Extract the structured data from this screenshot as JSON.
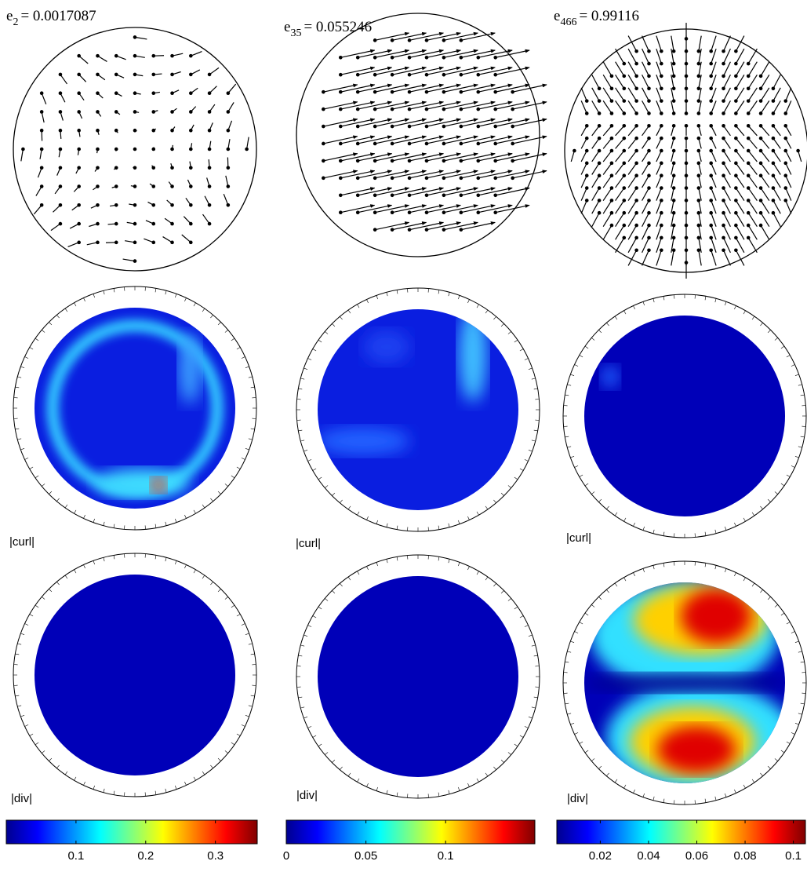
{
  "panels": [
    {
      "title": {
        "base": "e",
        "subscript": "2",
        "value": "= 0.0017087"
      },
      "curl_label": "|curl|",
      "div_label": "|div|",
      "colorbar": {
        "lim": [
          0,
          0.36
        ],
        "ticks": [
          0.1,
          0.2,
          0.3
        ]
      }
    },
    {
      "title": {
        "base": "e",
        "subscript": "35",
        "value": "= 0.055246"
      },
      "curl_label": "|curl|",
      "div_label": "|div|",
      "colorbar": {
        "lim": [
          0,
          0.156
        ],
        "ticks": [
          0,
          0.05,
          0.1
        ]
      }
    },
    {
      "title": {
        "base": "e",
        "subscript": "466",
        "value": "= 0.99116"
      },
      "curl_label": "|curl|",
      "div_label": "|div|",
      "colorbar": {
        "lim": [
          0.002,
          0.105
        ],
        "ticks": [
          0.02,
          0.04,
          0.06,
          0.08,
          0.1
        ]
      }
    }
  ]
}
